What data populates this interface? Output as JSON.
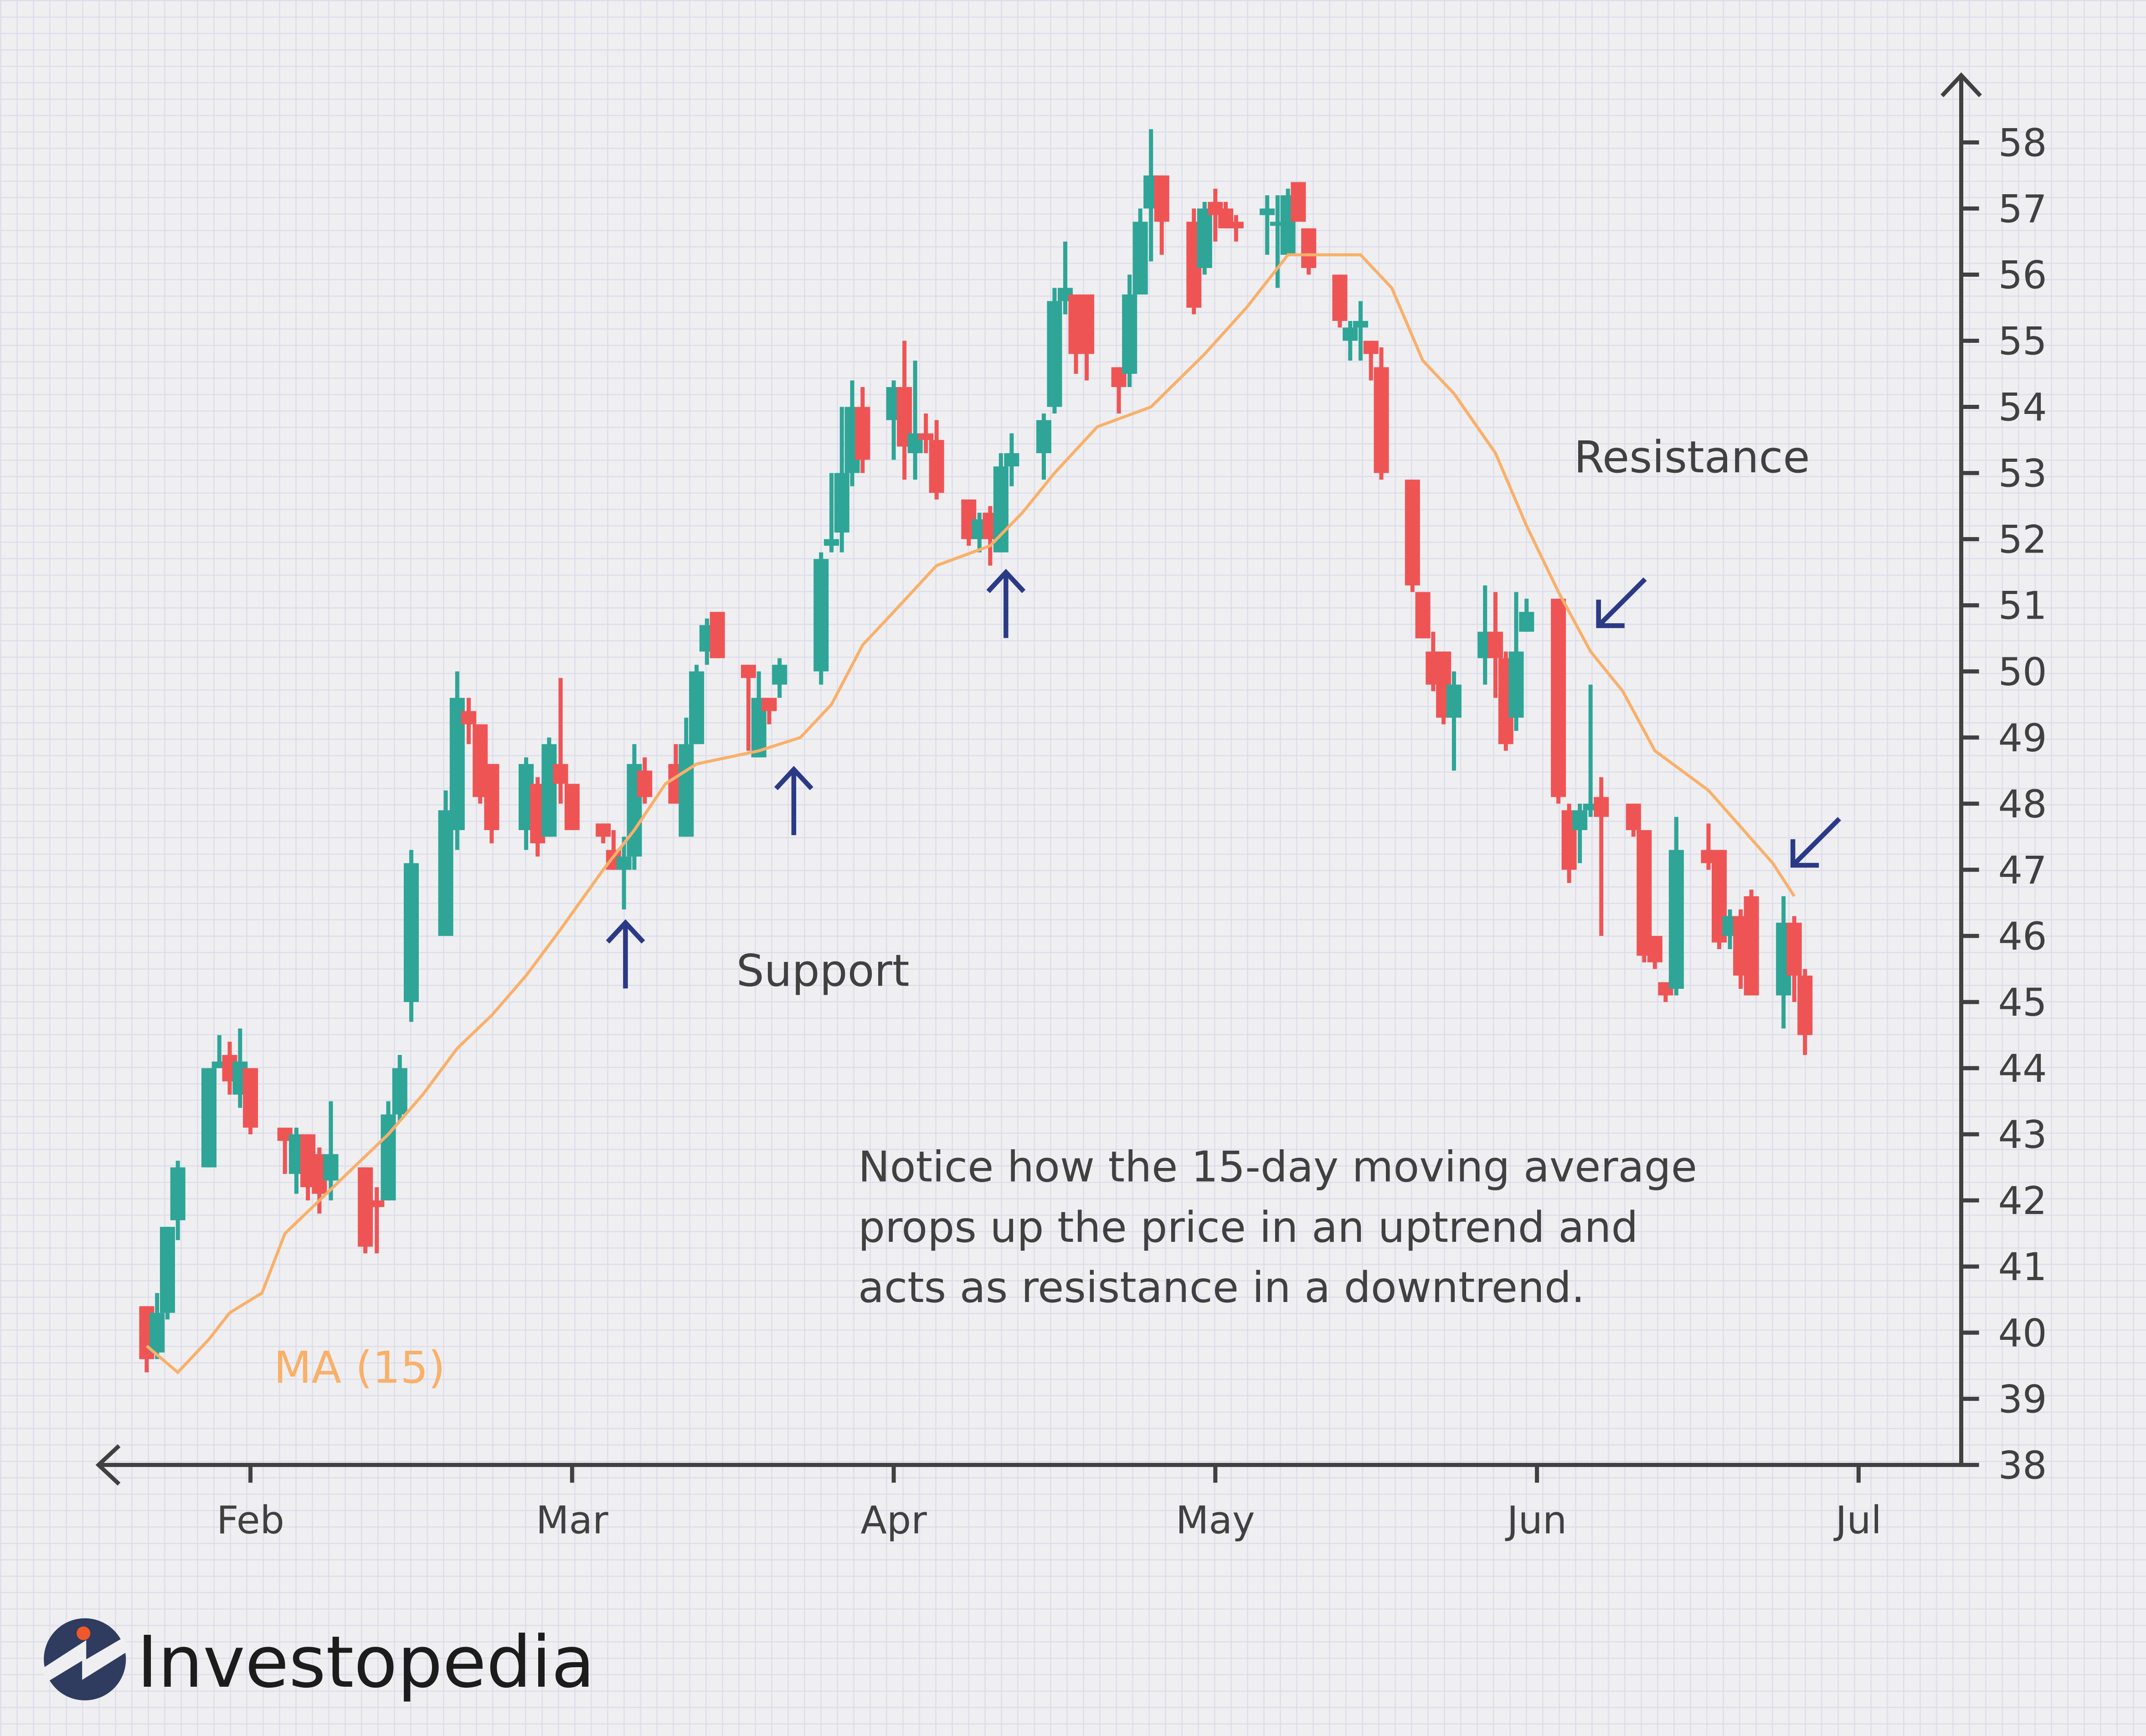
{
  "chart_data": {
    "type": "candlestick",
    "title": "",
    "xlabel": "",
    "ylabel": "",
    "ylim": [
      38,
      58
    ],
    "y_ticks": [
      "38",
      "39",
      "40",
      "41",
      "42",
      "43",
      "44",
      "45",
      "46",
      "47",
      "48",
      "49",
      "50",
      "51",
      "52",
      "53",
      "54",
      "55",
      "56",
      "57",
      "58"
    ],
    "x_ticks": [
      {
        "label": "Feb",
        "date": "02-01"
      },
      {
        "label": "Mar",
        "date": "03-01"
      },
      {
        "label": "Apr",
        "date": "04-01"
      },
      {
        "label": "May",
        "date": "05-01"
      },
      {
        "label": "Jun",
        "date": "06-01"
      },
      {
        "label": "Jul",
        "date": "07-01"
      }
    ],
    "grid": true,
    "colors": {
      "up": "#2ea597",
      "down": "#ef5455",
      "ma": "#f9b06a",
      "arrow": "#2b3a86",
      "text": "#404040"
    },
    "candles_columns": [
      "date",
      "open",
      "high",
      "low",
      "close"
    ],
    "candles": [
      [
        "01-22",
        40.4,
        40.4,
        39.4,
        39.6
      ],
      [
        "01-23",
        39.7,
        40.6,
        39.6,
        40.3
      ],
      [
        "01-24",
        40.3,
        41.6,
        40.2,
        41.6
      ],
      [
        "01-25",
        41.7,
        42.6,
        41.4,
        42.5
      ],
      [
        "01-28",
        42.5,
        44.0,
        42.5,
        44.0
      ],
      [
        "01-29",
        44.0,
        44.5,
        44.0,
        44.1
      ],
      [
        "01-30",
        44.2,
        44.4,
        43.6,
        43.8
      ],
      [
        "01-31",
        43.6,
        44.6,
        43.4,
        44.1
      ],
      [
        "02-01",
        44.0,
        44.0,
        43.0,
        43.1
      ],
      [
        "02-04",
        43.1,
        43.1,
        42.4,
        42.9
      ],
      [
        "02-05",
        42.4,
        43.1,
        42.1,
        43.0
      ],
      [
        "02-06",
        43.0,
        43.0,
        42.0,
        42.2
      ],
      [
        "02-07",
        42.7,
        42.8,
        41.8,
        42.1
      ],
      [
        "02-08",
        42.3,
        43.5,
        42.0,
        42.7
      ],
      [
        "02-11",
        42.5,
        42.5,
        41.2,
        41.3
      ],
      [
        "02-12",
        42.0,
        42.2,
        41.2,
        41.9
      ],
      [
        "02-13",
        42.0,
        43.5,
        42.0,
        43.3
      ],
      [
        "02-14",
        43.3,
        44.2,
        43.2,
        44.0
      ],
      [
        "02-15",
        45.0,
        47.3,
        44.7,
        47.1
      ],
      [
        "02-18",
        46.0,
        48.2,
        46.0,
        47.9
      ],
      [
        "02-19",
        47.6,
        50.0,
        47.3,
        49.6
      ],
      [
        "02-20",
        49.4,
        49.6,
        48.9,
        49.2
      ],
      [
        "02-21",
        49.2,
        49.2,
        48.0,
        48.1
      ],
      [
        "02-22",
        48.6,
        48.6,
        47.4,
        47.6
      ],
      [
        "02-25",
        47.6,
        48.7,
        47.3,
        48.6
      ],
      [
        "02-26",
        48.3,
        48.4,
        47.2,
        47.4
      ],
      [
        "02-27",
        47.5,
        49.0,
        47.5,
        48.9
      ],
      [
        "02-28",
        48.6,
        49.9,
        48.0,
        48.3
      ],
      [
        "03-01",
        48.3,
        48.3,
        47.6,
        47.6
      ],
      [
        "03-04",
        47.7,
        47.7,
        47.4,
        47.5
      ],
      [
        "03-05",
        47.3,
        47.6,
        47.0,
        47.0
      ],
      [
        "03-06",
        47.0,
        47.5,
        46.4,
        47.2
      ],
      [
        "03-07",
        47.2,
        48.9,
        47.0,
        48.6
      ],
      [
        "03-08",
        48.5,
        48.7,
        48.0,
        48.1
      ],
      [
        "03-11",
        48.6,
        48.9,
        48.0,
        48.0
      ],
      [
        "03-12",
        47.5,
        49.3,
        47.5,
        48.9
      ],
      [
        "03-13",
        48.9,
        50.1,
        48.9,
        50.0
      ],
      [
        "03-14",
        50.3,
        50.8,
        50.1,
        50.7
      ],
      [
        "03-15",
        50.9,
        50.9,
        50.2,
        50.2
      ],
      [
        "03-18",
        50.1,
        50.1,
        48.8,
        49.9
      ],
      [
        "03-19",
        48.7,
        50.0,
        48.7,
        49.6
      ],
      [
        "03-20",
        49.6,
        49.6,
        49.2,
        49.4
      ],
      [
        "03-21",
        49.8,
        50.2,
        49.6,
        50.1
      ],
      [
        "03-25",
        50.0,
        51.8,
        49.8,
        51.7
      ],
      [
        "03-26",
        51.9,
        53.0,
        51.8,
        52.0
      ],
      [
        "03-27",
        52.1,
        54.0,
        51.8,
        53.0
      ],
      [
        "03-28",
        53.0,
        54.4,
        52.8,
        54.0
      ],
      [
        "03-29",
        54.0,
        54.3,
        53.0,
        53.2
      ],
      [
        "04-01",
        53.8,
        54.4,
        53.2,
        54.3
      ],
      [
        "04-02",
        54.3,
        55.0,
        52.9,
        53.4
      ],
      [
        "04-03",
        53.3,
        54.7,
        52.9,
        53.6
      ],
      [
        "04-04",
        53.6,
        53.9,
        53.3,
        53.5
      ],
      [
        "04-05",
        53.5,
        53.8,
        52.6,
        52.7
      ],
      [
        "04-08",
        52.6,
        52.6,
        51.9,
        52.0
      ],
      [
        "04-09",
        52.0,
        52.4,
        51.8,
        52.3
      ],
      [
        "04-10",
        52.4,
        52.5,
        51.6,
        52.0
      ],
      [
        "04-11",
        51.8,
        53.3,
        51.8,
        53.1
      ],
      [
        "04-12",
        53.1,
        53.6,
        52.8,
        53.3
      ],
      [
        "04-15",
        53.3,
        53.9,
        52.9,
        53.8
      ],
      [
        "04-16",
        54.0,
        55.8,
        53.9,
        55.6
      ],
      [
        "04-17",
        55.6,
        56.5,
        55.4,
        55.8
      ],
      [
        "04-18",
        55.7,
        55.7,
        54.5,
        54.8
      ],
      [
        "04-19",
        55.7,
        55.7,
        54.4,
        54.8
      ],
      [
        "04-22",
        54.6,
        54.6,
        53.9,
        54.3
      ],
      [
        "04-23",
        54.5,
        56.0,
        54.3,
        55.7
      ],
      [
        "04-24",
        55.7,
        57.0,
        55.7,
        56.8
      ],
      [
        "04-25",
        57.0,
        58.2,
        56.2,
        57.5
      ],
      [
        "04-26",
        57.5,
        57.5,
        56.3,
        56.8
      ],
      [
        "04-29",
        56.8,
        57.0,
        55.4,
        55.5
      ],
      [
        "04-30",
        56.1,
        57.1,
        56.0,
        57.0
      ],
      [
        "05-01",
        57.1,
        57.3,
        56.5,
        56.9
      ],
      [
        "05-02",
        57.0,
        57.1,
        56.7,
        56.7
      ],
      [
        "05-03",
        56.8,
        56.9,
        56.5,
        56.7
      ],
      [
        "05-06",
        56.9,
        57.2,
        56.3,
        57.0
      ],
      [
        "05-07",
        56.8,
        57.2,
        55.8,
        56.8
      ],
      [
        "05-08",
        56.3,
        57.3,
        56.3,
        57.2
      ],
      [
        "05-09",
        57.4,
        57.4,
        56.8,
        56.8
      ],
      [
        "05-10",
        56.7,
        56.7,
        56.0,
        56.1
      ],
      [
        "05-13",
        56.0,
        56.0,
        55.2,
        55.3
      ],
      [
        "05-14",
        55.0,
        55.3,
        54.7,
        55.2
      ],
      [
        "05-15",
        55.2,
        55.6,
        54.7,
        55.3
      ],
      [
        "05-16",
        55.0,
        55.0,
        54.4,
        54.8
      ],
      [
        "05-17",
        54.6,
        54.9,
        52.9,
        53.0
      ],
      [
        "05-20",
        52.9,
        52.9,
        51.2,
        51.3
      ],
      [
        "05-21",
        51.2,
        51.2,
        50.5,
        50.5
      ],
      [
        "05-22",
        50.3,
        50.6,
        49.7,
        49.8
      ],
      [
        "05-23",
        50.3,
        50.3,
        49.2,
        49.3
      ],
      [
        "05-24",
        49.3,
        50.0,
        48.5,
        49.8
      ],
      [
        "05-27",
        50.2,
        51.3,
        49.8,
        50.6
      ],
      [
        "05-28",
        50.6,
        51.2,
        49.6,
        50.2
      ],
      [
        "05-29",
        50.2,
        50.3,
        48.8,
        48.9
      ],
      [
        "05-30",
        49.3,
        51.2,
        49.1,
        50.3
      ],
      [
        "05-31",
        50.6,
        51.1,
        50.6,
        50.9
      ],
      [
        "06-03",
        51.1,
        51.1,
        48.0,
        48.1
      ],
      [
        "06-04",
        47.9,
        48.0,
        46.8,
        47.0
      ],
      [
        "06-05",
        47.6,
        48.0,
        47.1,
        47.9
      ],
      [
        "06-06",
        47.9,
        49.8,
        47.8,
        48.0
      ],
      [
        "06-07",
        48.1,
        48.4,
        46.0,
        47.8
      ],
      [
        "06-10",
        48.0,
        48.0,
        47.5,
        47.6
      ],
      [
        "06-11",
        47.6,
        47.6,
        45.6,
        45.7
      ],
      [
        "06-12",
        46.0,
        46.0,
        45.5,
        45.6
      ],
      [
        "06-13",
        45.3,
        45.3,
        45.0,
        45.1
      ],
      [
        "06-14",
        45.2,
        47.8,
        45.1,
        47.3
      ],
      [
        "06-17",
        47.3,
        47.7,
        47.0,
        47.1
      ],
      [
        "06-18",
        47.3,
        47.3,
        45.8,
        45.9
      ],
      [
        "06-19",
        46.0,
        46.4,
        45.8,
        46.3
      ],
      [
        "06-20",
        46.3,
        46.4,
        45.2,
        45.4
      ],
      [
        "06-21",
        46.6,
        46.7,
        45.1,
        45.1
      ],
      [
        "06-24",
        45.1,
        46.6,
        44.6,
        46.2
      ],
      [
        "06-25",
        46.2,
        46.3,
        45.0,
        45.4
      ],
      [
        "06-26",
        45.4,
        45.5,
        44.2,
        44.5
      ]
    ],
    "moving_average": {
      "name": "MA (15)",
      "points": [
        [
          "01-22",
          39.8
        ],
        [
          "01-25",
          39.4
        ],
        [
          "01-28",
          39.9
        ],
        [
          "01-30",
          40.3
        ],
        [
          "02-02",
          40.6
        ],
        [
          "02-04",
          41.5
        ],
        [
          "02-07",
          42.0
        ],
        [
          "02-10",
          42.5
        ],
        [
          "02-13",
          43.0
        ],
        [
          "02-16",
          43.6
        ],
        [
          "02-19",
          44.3
        ],
        [
          "02-22",
          44.8
        ],
        [
          "02-25",
          45.4
        ],
        [
          "02-28",
          46.1
        ],
        [
          "03-04",
          47.0
        ],
        [
          "03-07",
          47.6
        ],
        [
          "03-10",
          48.3
        ],
        [
          "03-13",
          48.6
        ],
        [
          "03-19",
          48.8
        ],
        [
          "03-23",
          49.0
        ],
        [
          "03-26",
          49.5
        ],
        [
          "03-29",
          50.4
        ],
        [
          "04-01",
          50.9
        ],
        [
          "04-05",
          51.6
        ],
        [
          "04-10",
          51.9
        ],
        [
          "04-13",
          52.4
        ],
        [
          "04-16",
          53.0
        ],
        [
          "04-20",
          53.7
        ],
        [
          "04-25",
          54.0
        ],
        [
          "04-30",
          54.8
        ],
        [
          "05-04",
          55.5
        ],
        [
          "05-08",
          56.3
        ],
        [
          "05-15",
          56.3
        ],
        [
          "05-18",
          55.8
        ],
        [
          "05-21",
          54.7
        ],
        [
          "05-24",
          54.2
        ],
        [
          "05-28",
          53.3
        ],
        [
          "05-31",
          52.2
        ],
        [
          "06-03",
          51.2
        ],
        [
          "06-06",
          50.3
        ],
        [
          "06-09",
          49.7
        ],
        [
          "06-12",
          48.8
        ],
        [
          "06-17",
          48.2
        ],
        [
          "06-23",
          47.1
        ],
        [
          "06-25",
          46.6
        ]
      ]
    },
    "annotations": {
      "support": "Support",
      "resistance": "Resistance",
      "note_lines": [
        "Notice how the 15-day moving average",
        "props up the price in an uptrend and",
        "acts as resistance in a downtrend."
      ]
    }
  },
  "brand": {
    "logo_text": "Investopedia",
    "logo_icon": "investopedia-logo-icon",
    "colors": {
      "circle": "#2f3b5f",
      "dot": "#f0582a",
      "text": "#1c1c1c"
    }
  }
}
